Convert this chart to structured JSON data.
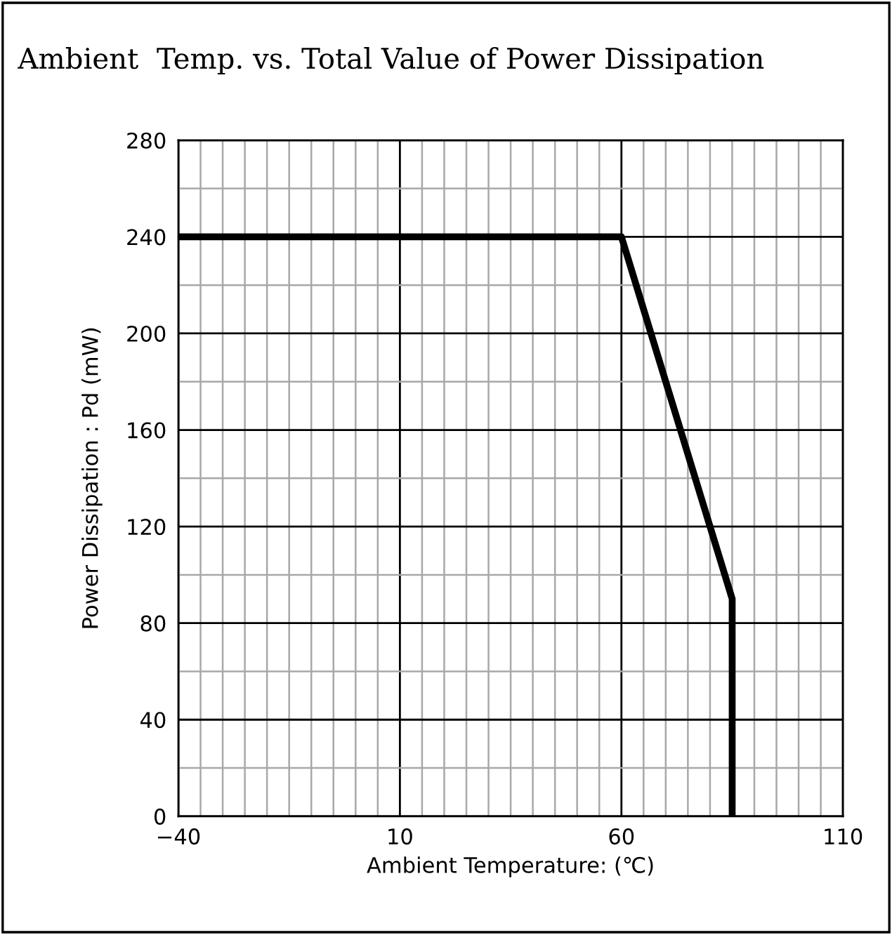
{
  "chart_data": {
    "type": "line",
    "title": "Ambient  Temp. vs. Total Value of Power Dissipation",
    "xlabel": "Ambient Temperature: (℃)",
    "ylabel": "Power Dissipation : Pd (mW)",
    "series": [
      {
        "color": "#000000",
        "x": [
          -40,
          60,
          85,
          85
        ],
        "values": [
          240,
          240,
          90,
          0
        ]
      }
    ],
    "xlim": [
      -40,
      110
    ],
    "ylim": [
      0,
      280
    ],
    "xticks": [
      {
        "value": -40,
        "label": "−40"
      },
      {
        "value": -35,
        "label": null
      },
      {
        "value": -30,
        "label": null
      },
      {
        "value": -25,
        "label": null
      },
      {
        "value": -20,
        "label": null
      },
      {
        "value": -15,
        "label": null
      },
      {
        "value": -10,
        "label": null
      },
      {
        "value": -5,
        "label": null
      },
      {
        "value": 0,
        "label": null
      },
      {
        "value": 5,
        "label": null
      },
      10,
      {
        "value": 15,
        "label": null
      },
      {
        "value": 20,
        "label": null
      },
      {
        "value": 25,
        "label": null
      },
      {
        "value": 30,
        "label": null
      },
      {
        "value": 35,
        "label": null
      },
      {
        "value": 40,
        "label": null
      },
      {
        "value": 45,
        "label": null
      },
      {
        "value": 50,
        "label": null
      },
      {
        "value": 55,
        "label": null
      },
      60,
      {
        "value": 65,
        "label": null
      },
      {
        "value": 70,
        "label": null
      },
      {
        "value": 75,
        "label": null
      },
      {
        "value": 80,
        "label": null
      },
      {
        "value": 85,
        "label": null
      },
      {
        "value": 90,
        "label": null
      },
      {
        "value": 95,
        "label": null
      },
      {
        "value": 100,
        "label": null
      },
      {
        "value": 105,
        "label": null
      },
      110
    ],
    "yticks": [
      0,
      {
        "value": 20,
        "label": null
      },
      40,
      {
        "value": 60,
        "label": null
      },
      80,
      {
        "value": 100,
        "label": null
      },
      120,
      {
        "value": 140,
        "label": null
      },
      160,
      {
        "value": 180,
        "label": null
      },
      200,
      {
        "value": 220,
        "label": null
      },
      240,
      {
        "value": 260,
        "label": null
      },
      280
    ],
    "grid": true,
    "marker": "none",
    "line_style": "solid"
  }
}
